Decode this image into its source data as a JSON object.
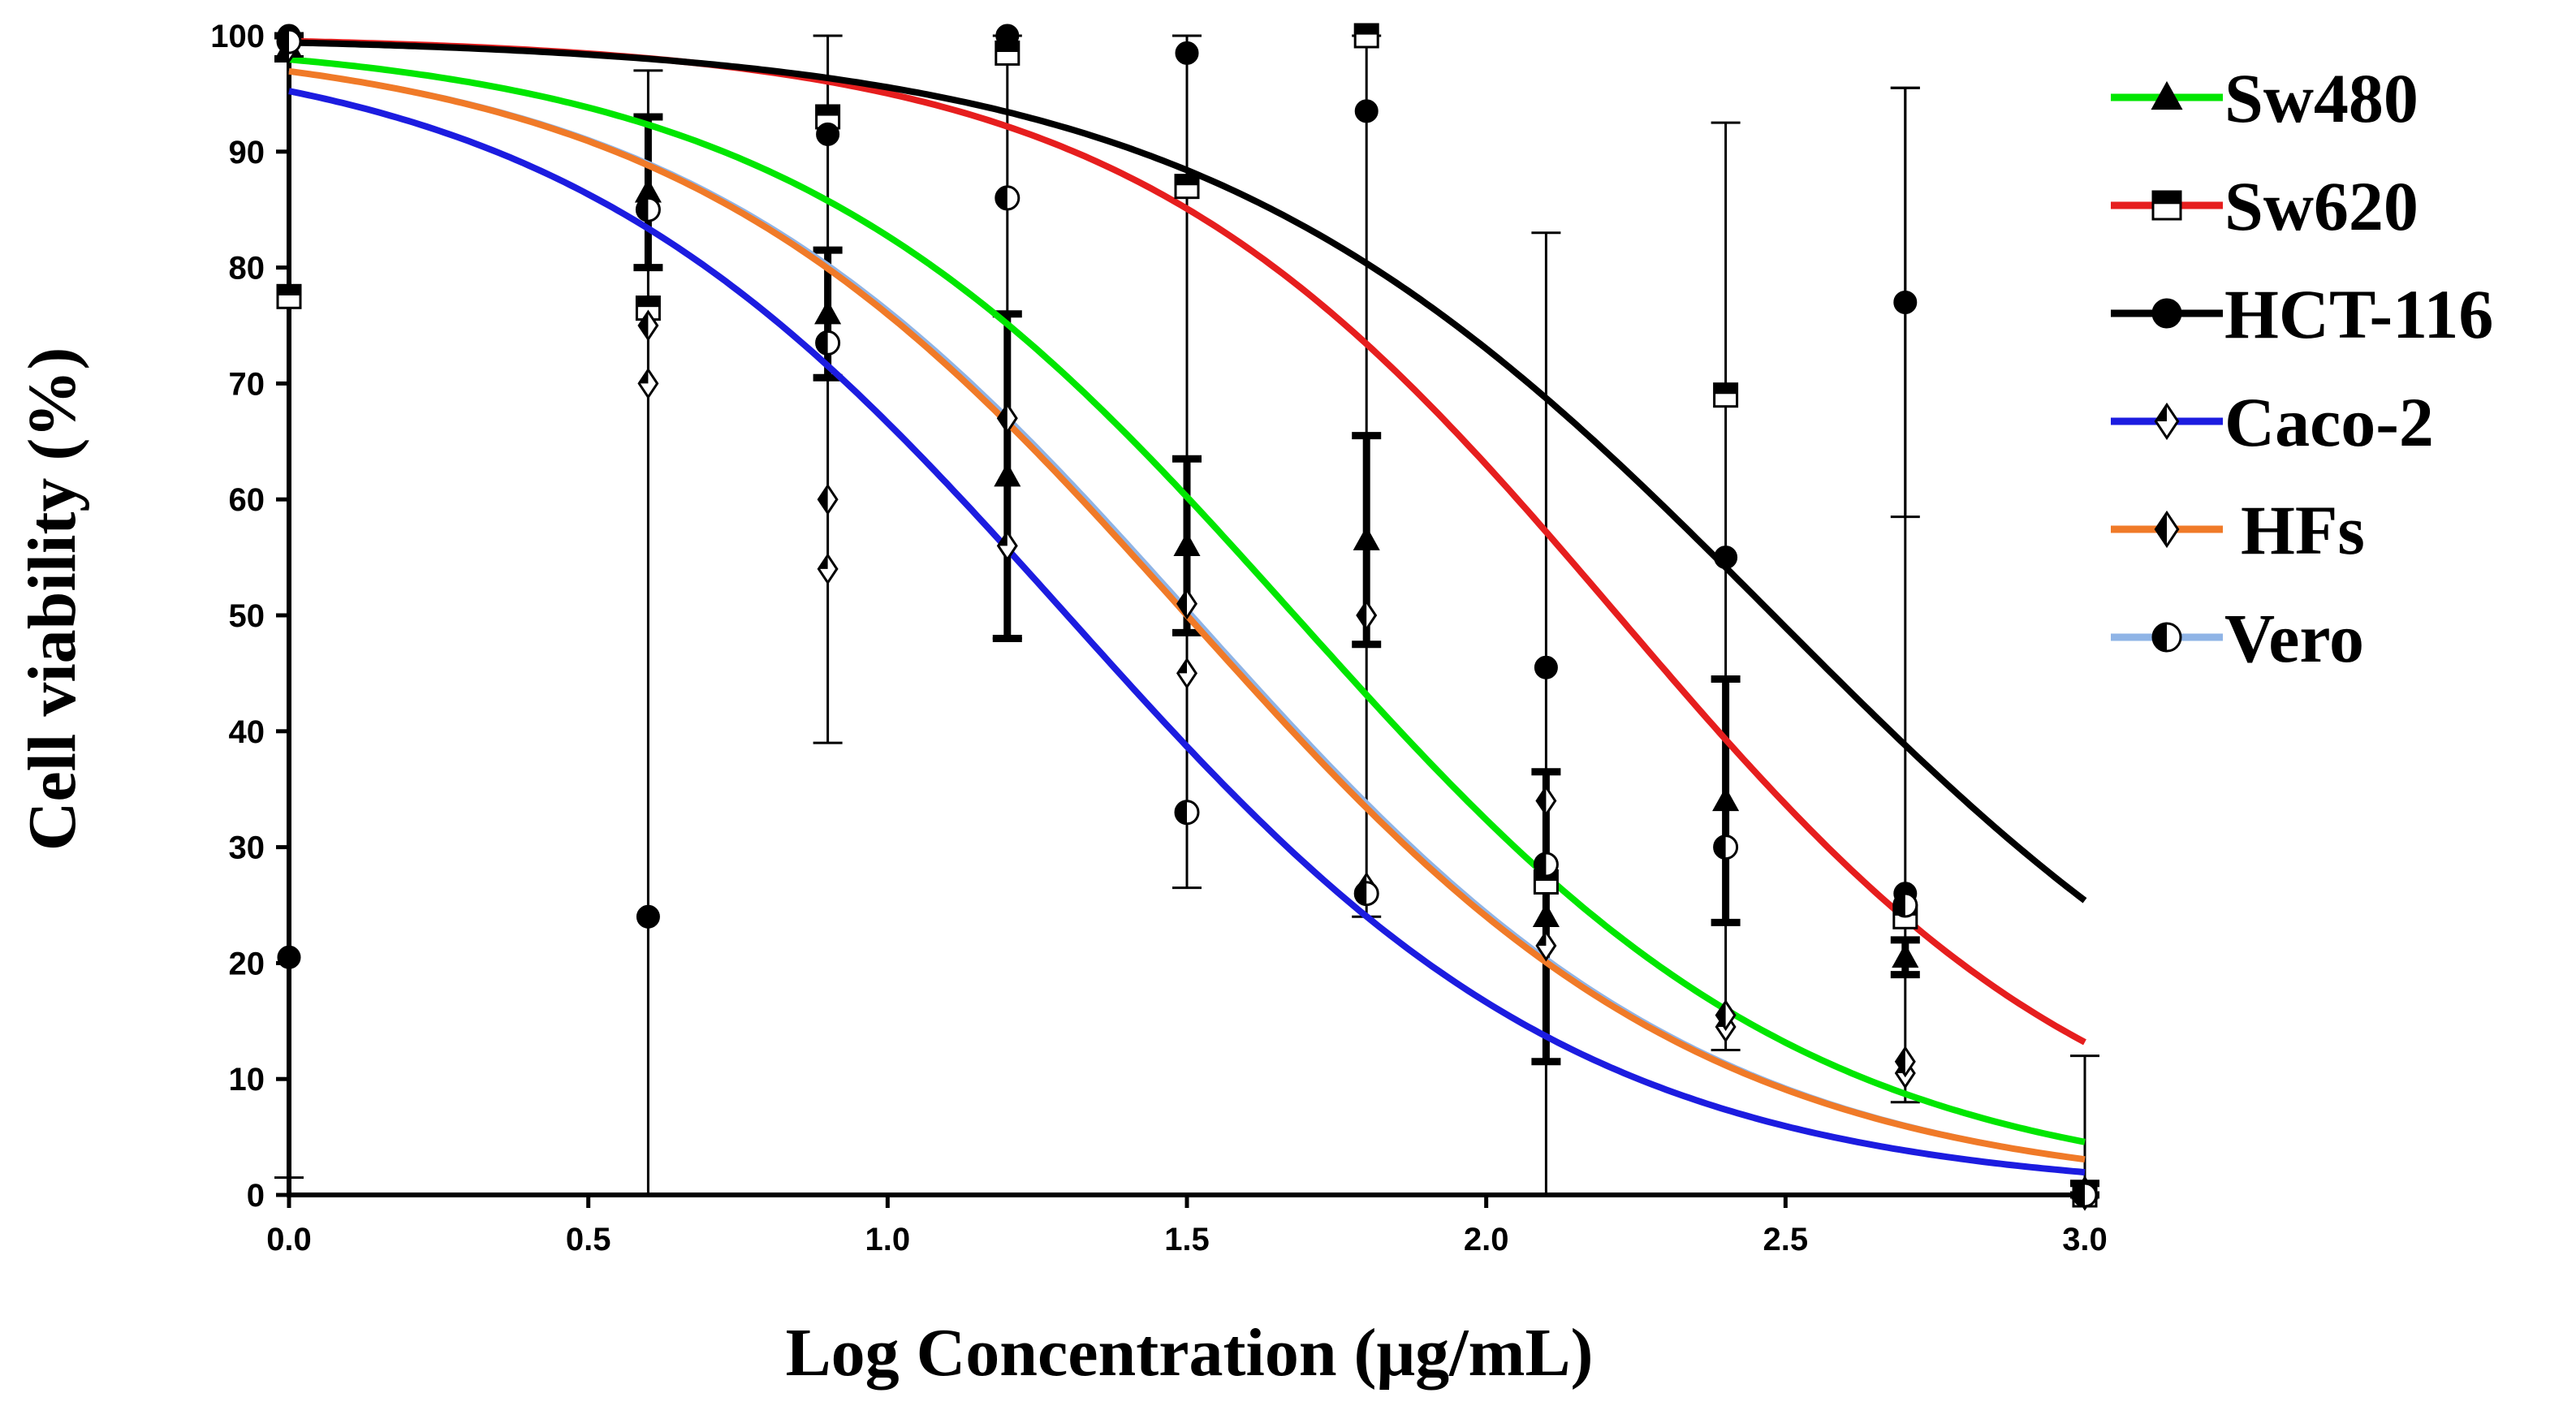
{
  "chart_data": {
    "type": "line",
    "title": "",
    "xlabel": "Log Concentration (μg/mL)",
    "ylabel": "Cell viability (%)",
    "xlim": [
      0.0,
      3.0
    ],
    "ylim": [
      0,
      100
    ],
    "xticks": [
      "0.0",
      "0.5",
      "1.0",
      "1.5",
      "2.0",
      "2.5",
      "3.0"
    ],
    "yticks": [
      "0",
      "10",
      "20",
      "30",
      "40",
      "50",
      "60",
      "70",
      "80",
      "90",
      "100"
    ],
    "grid": false,
    "legend_position": "right",
    "series": [
      {
        "name": "Sw480",
        "color": "#00e600",
        "marker": "triangle",
        "curve": {
          "top": 100,
          "bottom": 0,
          "logIC50": 1.68,
          "hill": -1.0
        },
        "points": [
          {
            "x": 0.0,
            "y": 99.0,
            "err": 1.0
          },
          {
            "x": 0.6,
            "y": 86.5,
            "err": 6.5
          },
          {
            "x": 0.9,
            "y": 76.0,
            "err": 5.5
          },
          {
            "x": 1.2,
            "y": 62.0,
            "err": 14.0
          },
          {
            "x": 1.5,
            "y": 56.0,
            "err": 7.5
          },
          {
            "x": 1.8,
            "y": 56.5,
            "err": 9.0
          },
          {
            "x": 2.1,
            "y": 24.0,
            "err": 12.5
          },
          {
            "x": 2.4,
            "y": 34.0,
            "err": 10.5
          },
          {
            "x": 2.7,
            "y": 20.5,
            "err": 1.5
          },
          {
            "x": 3.0,
            "y": 0.5,
            "err": 0.5
          }
        ]
      },
      {
        "name": "Sw620",
        "color": "#e61e1e",
        "marker": "square",
        "curve": {
          "top": 100,
          "bottom": 0,
          "logIC50": 2.22,
          "hill": -1.05
        },
        "points": [
          {
            "x": 0.0,
            "y": 77.5,
            "err": 0
          },
          {
            "x": 0.6,
            "y": 76.5,
            "err": 0
          },
          {
            "x": 0.9,
            "y": 93.0,
            "err": 0
          },
          {
            "x": 1.2,
            "y": 98.5,
            "err": 0
          },
          {
            "x": 1.5,
            "y": 87.0,
            "err": 0
          },
          {
            "x": 1.8,
            "y": 100.0,
            "err": 0
          },
          {
            "x": 2.1,
            "y": 27.0,
            "err": 0
          },
          {
            "x": 2.4,
            "y": 69.0,
            "err": 0
          },
          {
            "x": 2.7,
            "y": 24.0,
            "err": 0
          },
          {
            "x": 3.0,
            "y": 0.0,
            "err": 0
          }
        ]
      },
      {
        "name": "HCT-116",
        "color": "#000000",
        "marker": "circle",
        "curve": {
          "top": 100,
          "bottom": 0,
          "logIC50": 2.48,
          "hill": -0.9
        },
        "points": [
          {
            "x": 0.0,
            "y": 100.0,
            "err": 0
          },
          {
            "x": 0.0,
            "y": 20.5,
            "err": 0
          },
          {
            "x": 0.6,
            "y": 24.0,
            "err": 0
          },
          {
            "x": 0.9,
            "y": 91.5,
            "err": 0
          },
          {
            "x": 1.2,
            "y": 100.0,
            "err": 0
          },
          {
            "x": 1.5,
            "y": 98.5,
            "err": 0
          },
          {
            "x": 1.8,
            "y": 93.5,
            "err": 0
          },
          {
            "x": 2.1,
            "y": 45.5,
            "err": 0
          },
          {
            "x": 2.4,
            "y": 55.0,
            "err": 0
          },
          {
            "x": 2.7,
            "y": 77.0,
            "err": 18.5
          },
          {
            "x": 2.7,
            "y": 26.0,
            "err": 0
          },
          {
            "x": 3.0,
            "y": 0.0,
            "err": 0
          }
        ]
      },
      {
        "name": "Caco-2",
        "color": "#1c1ce0",
        "marker": "diamond",
        "curve": {
          "top": 100,
          "bottom": 0,
          "logIC50": 1.3,
          "hill": -1.0
        },
        "points": [
          {
            "x": 0.0,
            "y": 99.0,
            "err": 0
          },
          {
            "x": 0.6,
            "y": 70.0,
            "err": 0
          },
          {
            "x": 0.9,
            "y": 54.0,
            "err": 0
          },
          {
            "x": 1.2,
            "y": 56.0,
            "err": 0
          },
          {
            "x": 1.5,
            "y": 45.0,
            "err": 0
          },
          {
            "x": 1.8,
            "y": 26.5,
            "err": 0
          },
          {
            "x": 2.1,
            "y": 21.5,
            "err": 0
          },
          {
            "x": 2.4,
            "y": 14.5,
            "err": 0
          },
          {
            "x": 2.7,
            "y": 10.5,
            "err": 0
          },
          {
            "x": 3.0,
            "y": 0.0,
            "err": 0
          }
        ]
      },
      {
        "name": "HFs",
        "color": "#f07a28",
        "marker": "half-diamond",
        "curve": {
          "top": 100,
          "bottom": 0,
          "logIC50": 1.5,
          "hill": -1.0
        },
        "points": [
          {
            "x": 0.0,
            "y": 99.0,
            "err": 0
          },
          {
            "x": 0.6,
            "y": 75.0,
            "err": 0
          },
          {
            "x": 0.9,
            "y": 60.0,
            "err": 0
          },
          {
            "x": 1.2,
            "y": 67.0,
            "err": 0
          },
          {
            "x": 1.5,
            "y": 51.0,
            "err": 0
          },
          {
            "x": 1.8,
            "y": 50.0,
            "err": 0
          },
          {
            "x": 2.1,
            "y": 34.0,
            "err": 0
          },
          {
            "x": 2.4,
            "y": 15.5,
            "err": 0
          },
          {
            "x": 2.7,
            "y": 11.5,
            "err": 0
          },
          {
            "x": 3.0,
            "y": 0.0,
            "err": 0
          }
        ]
      },
      {
        "name": "Vero",
        "color": "#8fb4e6",
        "marker": "half-circle",
        "curve": {
          "top": 100,
          "bottom": 0,
          "logIC50": 1.51,
          "hill": -1.0
        },
        "points": [
          {
            "x": 0.0,
            "y": 99.5,
            "err": 0
          },
          {
            "x": 0.6,
            "y": 85.0,
            "err": 0
          },
          {
            "x": 0.9,
            "y": 73.5,
            "err": 0
          },
          {
            "x": 1.2,
            "y": 86.0,
            "err": 0
          },
          {
            "x": 1.5,
            "y": 33.0,
            "err": 0
          },
          {
            "x": 1.8,
            "y": 26.0,
            "err": 0
          },
          {
            "x": 2.1,
            "y": 28.5,
            "err": 0
          },
          {
            "x": 2.4,
            "y": 30.0,
            "err": 0
          },
          {
            "x": 2.7,
            "y": 25.0,
            "err": 0
          },
          {
            "x": 3.0,
            "y": 0.0,
            "err": 0
          }
        ]
      }
    ],
    "shared_error_bars": [
      {
        "x": 0.0,
        "low": 1.5,
        "high": 100.0
      },
      {
        "x": 0.6,
        "low": 0.0,
        "high": 97.0
      },
      {
        "x": 0.9,
        "low": 39.0,
        "high": 100.0
      },
      {
        "x": 1.2,
        "low": 48.0,
        "high": 100.0
      },
      {
        "x": 1.5,
        "low": 26.5,
        "high": 100.0
      },
      {
        "x": 1.8,
        "low": 24.0,
        "high": 100.0
      },
      {
        "x": 2.1,
        "low": 0.0,
        "high": 83.0
      },
      {
        "x": 2.4,
        "low": 12.5,
        "high": 92.5
      },
      {
        "x": 2.7,
        "low": 8.0,
        "high": 95.5
      },
      {
        "x": 3.0,
        "low": 0.0,
        "high": 12.0
      }
    ]
  }
}
